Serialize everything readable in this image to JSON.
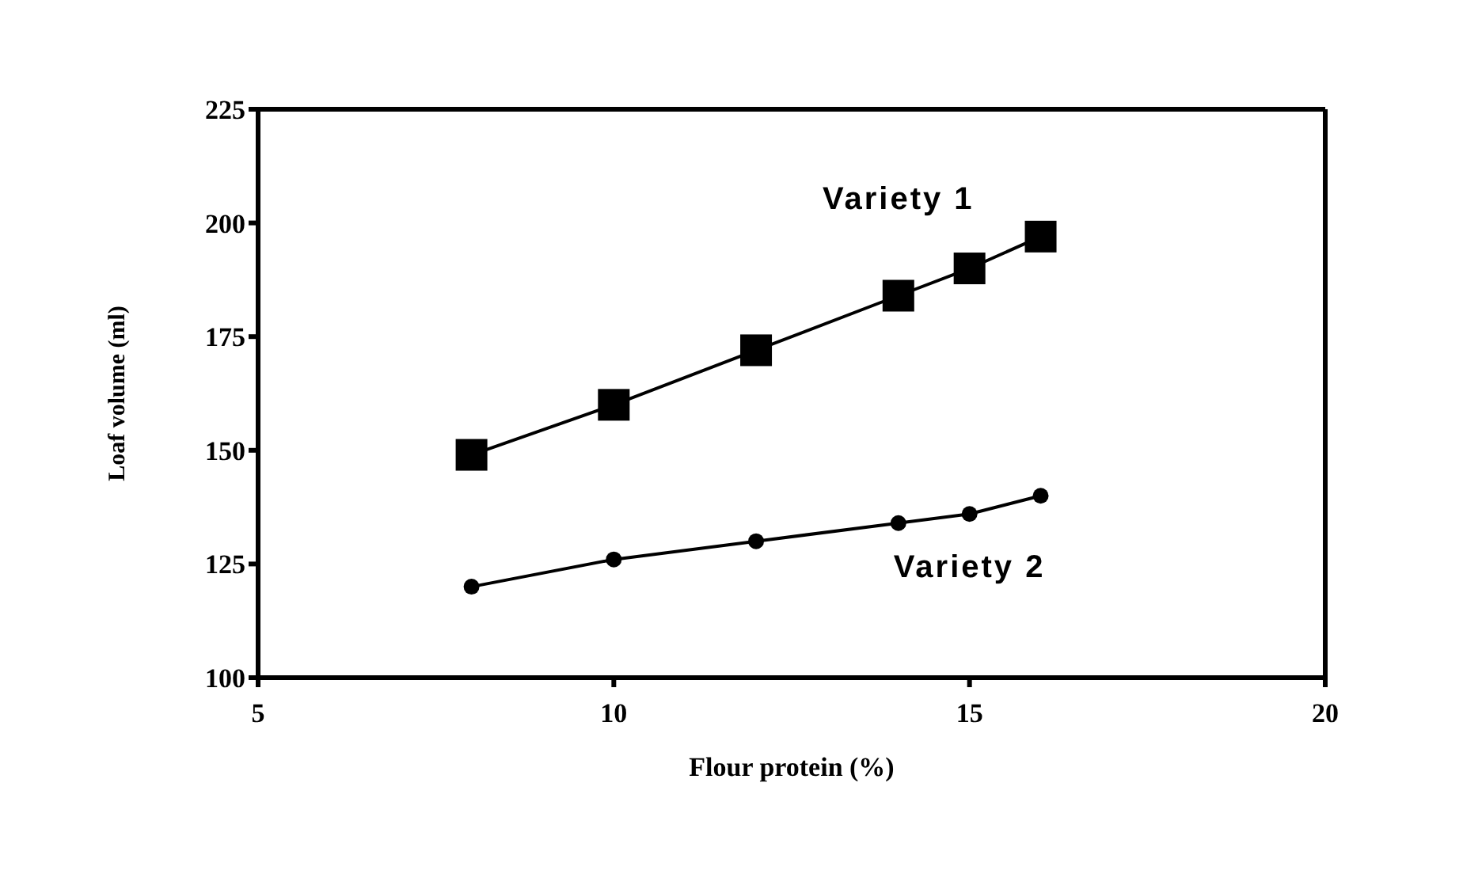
{
  "chart_data": {
    "type": "line",
    "xlabel": "Flour protein (%)",
    "ylabel": "Loaf volume (ml)",
    "x": [
      8,
      10,
      12,
      14,
      15,
      16
    ],
    "series": [
      {
        "name": "Variety 1",
        "color": "#000000",
        "marker": "square",
        "values": [
          149,
          160,
          172,
          184,
          190,
          197
        ]
      },
      {
        "name": "Variety 2",
        "color": "#000000",
        "marker": "circle",
        "values": [
          120,
          126,
          130,
          134,
          136,
          140
        ]
      }
    ],
    "xlim": [
      5,
      20
    ],
    "xticks": [
      5,
      10,
      15,
      20
    ],
    "ylim": [
      100,
      225
    ],
    "yticks": [
      100,
      125,
      150,
      175,
      200,
      225
    ],
    "grid": false,
    "legend": false
  }
}
